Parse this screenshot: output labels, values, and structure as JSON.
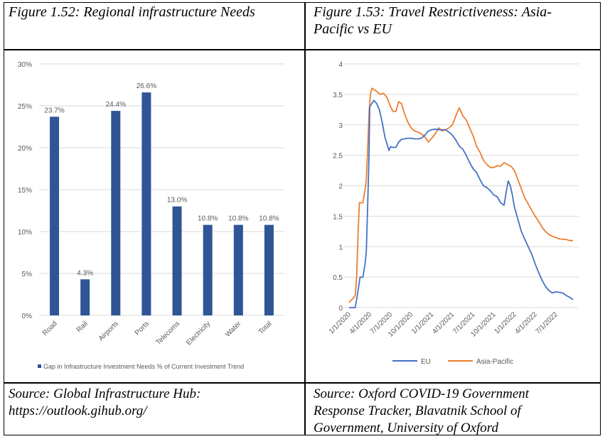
{
  "captions": {
    "left": "Figure 1.52: Regional infrastructure Needs",
    "right_line1": "Figure 1.53: Travel Restrictiveness: Asia-",
    "right_line2": "Pacific vs EU"
  },
  "sources": {
    "left_line1": "Source: Global Infrastructure Hub:",
    "left_line2": "https://outlook.gihub.org/",
    "right_line1": "Source: Oxford COVID-19 Government",
    "right_line2": "Response Tracker, Blavatnik School of",
    "right_line3": "Government, University of Oxford"
  },
  "colors": {
    "bar": "#2F5597",
    "eu": "#4472C4",
    "asia_pacific": "#ED7D31",
    "grid": "#D9D9D9",
    "text": "#595959"
  },
  "chart_data": [
    {
      "type": "bar",
      "title": "",
      "xlabel": "",
      "ylabel": "",
      "categories": [
        "Road",
        "Rail",
        "Airports",
        "Ports",
        "Telecoms",
        "Electricity",
        "Water",
        "Total"
      ],
      "values": [
        23.7,
        4.3,
        24.4,
        26.6,
        13.0,
        10.8,
        10.8,
        10.8
      ],
      "data_labels": [
        "23.7%",
        "4.3%",
        "24.4%",
        "26.6%",
        "13.0%",
        "10.8%",
        "10.8%",
        "10.8%"
      ],
      "ylim": [
        0,
        30
      ],
      "yticks": [
        0,
        5,
        10,
        15,
        20,
        25,
        30
      ],
      "ytick_labels": [
        "0%",
        "5%",
        "10%",
        "15%",
        "20%",
        "25%",
        "30%"
      ],
      "grid": true,
      "legend": [
        "Gap in Infrastructure Investment Needs % of Current Investment Trend"
      ],
      "legend_position": "bottom"
    },
    {
      "type": "line",
      "title": "",
      "xlabel": "",
      "ylabel": "",
      "ylim": [
        0,
        4
      ],
      "yticks": [
        0,
        0.5,
        1,
        1.5,
        2,
        2.5,
        3,
        3.5,
        4
      ],
      "ytick_labels": [
        "0",
        "0.5",
        "1",
        "1.5",
        "2",
        "2.5",
        "3",
        "3.5",
        "4"
      ],
      "xtick_labels": [
        "1/1/2020",
        "4/1/2020",
        "7/1/2020",
        "10/1/2020",
        "1/1/2021",
        "4/1/2021",
        "7/1/2021",
        "10/1/2021",
        "1/1/2022",
        "4/1/2022",
        "7/1/2022"
      ],
      "x_unit": "months since 1/1/2020",
      "xlim": [
        0,
        32.5
      ],
      "grid": true,
      "legend_position": "bottom",
      "series": [
        {
          "name": "EU",
          "x": [
            0,
            0.6,
            0.9,
            1.2,
            1.6,
            2.0,
            2.3,
            2.5,
            2.7,
            2.9,
            3.0,
            3.3,
            3.6,
            4.0,
            4.4,
            4.8,
            5.2,
            5.6,
            5.8,
            6.0,
            6.4,
            6.8,
            7.2,
            7.6,
            8.0,
            8.5,
            9.0,
            9.5,
            10.0,
            10.5,
            11.0,
            11.5,
            12.0,
            12.5,
            13.0,
            13.5,
            14.0,
            14.5,
            15.0,
            15.5,
            16.0,
            16.5,
            17.0,
            17.5,
            18.0,
            18.5,
            19.0,
            19.5,
            20.0,
            20.5,
            21.0,
            21.5,
            22.0,
            22.5,
            22.8,
            23.1,
            23.4,
            23.7,
            24.0,
            24.5,
            25.0,
            25.5,
            26.0,
            26.5,
            27.0,
            27.5,
            28.0,
            28.5,
            29.0,
            29.5,
            30.0,
            30.5,
            31.0,
            31.5,
            32.0,
            32.5
          ],
          "y": [
            0,
            0,
            0,
            0.2,
            0.5,
            0.5,
            0.7,
            0.9,
            1.7,
            2.5,
            3.3,
            3.35,
            3.4,
            3.35,
            3.25,
            3.05,
            2.8,
            2.65,
            2.58,
            2.64,
            2.63,
            2.63,
            2.72,
            2.76,
            2.77,
            2.78,
            2.78,
            2.77,
            2.77,
            2.78,
            2.83,
            2.9,
            2.92,
            2.93,
            2.92,
            2.92,
            2.92,
            2.88,
            2.83,
            2.75,
            2.65,
            2.6,
            2.5,
            2.38,
            2.28,
            2.22,
            2.1,
            2.0,
            1.97,
            1.92,
            1.85,
            1.82,
            1.72,
            1.68,
            1.9,
            2.08,
            2.0,
            1.85,
            1.65,
            1.45,
            1.25,
            1.12,
            1.0,
            0.88,
            0.72,
            0.58,
            0.45,
            0.35,
            0.28,
            0.24,
            0.26,
            0.25,
            0.24,
            0.2,
            0.17,
            0.13
          ]
        },
        {
          "name": "Asia-Pacific",
          "x": [
            0,
            0.3,
            0.6,
            0.9,
            1.1,
            1.3,
            1.5,
            1.8,
            2.0,
            2.2,
            2.4,
            2.5,
            2.7,
            2.9,
            3.1,
            3.3,
            3.6,
            4.0,
            4.5,
            5.0,
            5.5,
            6.0,
            6.4,
            6.8,
            7.2,
            7.6,
            8.0,
            8.5,
            9.0,
            9.5,
            10.0,
            10.5,
            11.0,
            11.5,
            12.0,
            12.5,
            13.0,
            13.5,
            14.0,
            14.5,
            15.0,
            15.5,
            16.0,
            16.5,
            17.0,
            17.5,
            18.0,
            18.5,
            19.0,
            19.5,
            20.0,
            20.5,
            21.0,
            21.5,
            22.0,
            22.5,
            23.0,
            23.5,
            24.0,
            24.5,
            25.0,
            25.5,
            26.0,
            26.5,
            27.0,
            27.5,
            28.0,
            28.5,
            29.0,
            29.5,
            30.0,
            30.5,
            31.0,
            31.5,
            32.0,
            32.5
          ],
          "y": [
            0.08,
            0.12,
            0.15,
            0.2,
            0.5,
            1.2,
            1.72,
            1.72,
            1.72,
            1.85,
            2.0,
            2.1,
            2.6,
            3.2,
            3.5,
            3.6,
            3.58,
            3.55,
            3.5,
            3.52,
            3.45,
            3.3,
            3.22,
            3.22,
            3.38,
            3.35,
            3.2,
            3.05,
            2.95,
            2.9,
            2.88,
            2.85,
            2.8,
            2.72,
            2.78,
            2.85,
            2.95,
            2.9,
            2.92,
            2.95,
            3.0,
            3.15,
            3.28,
            3.15,
            3.08,
            2.95,
            2.82,
            2.65,
            2.55,
            2.42,
            2.35,
            2.3,
            2.3,
            2.33,
            2.32,
            2.38,
            2.35,
            2.32,
            2.25,
            2.1,
            1.95,
            1.8,
            1.7,
            1.6,
            1.5,
            1.42,
            1.32,
            1.25,
            1.2,
            1.17,
            1.15,
            1.13,
            1.12,
            1.12,
            1.1,
            1.1
          ]
        }
      ]
    }
  ]
}
